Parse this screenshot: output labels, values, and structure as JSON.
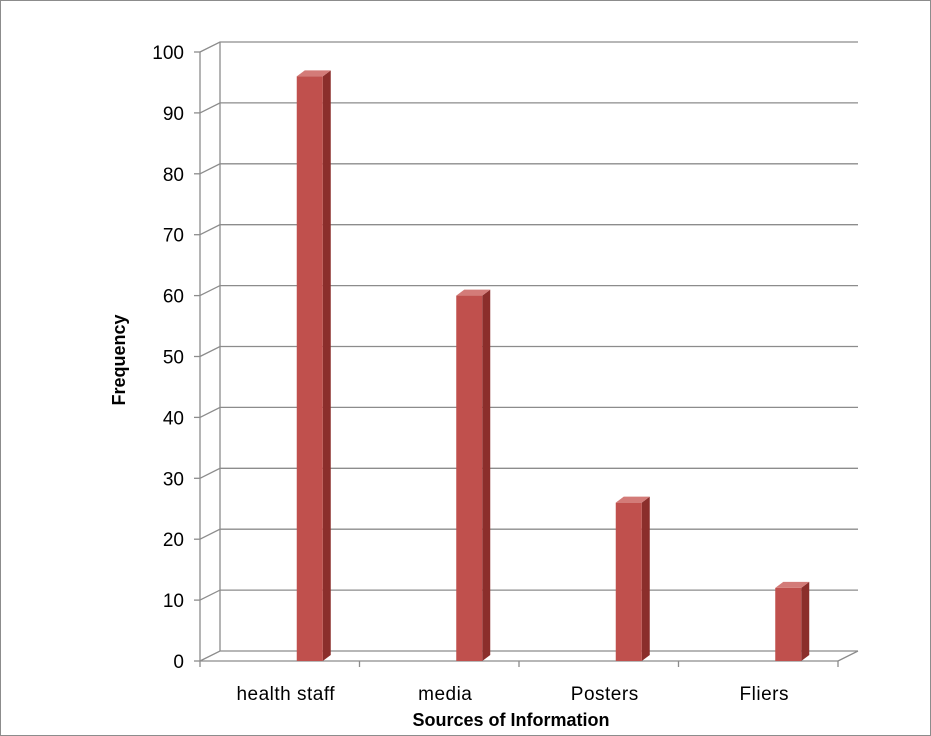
{
  "chart_data": {
    "type": "bar",
    "style": "3d-column",
    "title": "",
    "xlabel": "Sources of Information",
    "ylabel": "Frequency",
    "categories": [
      "health staff",
      "media",
      "Posters",
      "Fliers"
    ],
    "values": [
      96,
      60,
      26,
      12
    ],
    "ylim": [
      0,
      100
    ],
    "yticks": [
      0,
      10,
      20,
      30,
      40,
      50,
      60,
      70,
      80,
      90,
      100
    ],
    "grid": true,
    "legend": "none",
    "colors": {
      "bar_front": "#c0504d",
      "bar_side": "#8b2e2b",
      "bar_top": "#d37b78",
      "grid": "#8c8c8c"
    }
  }
}
